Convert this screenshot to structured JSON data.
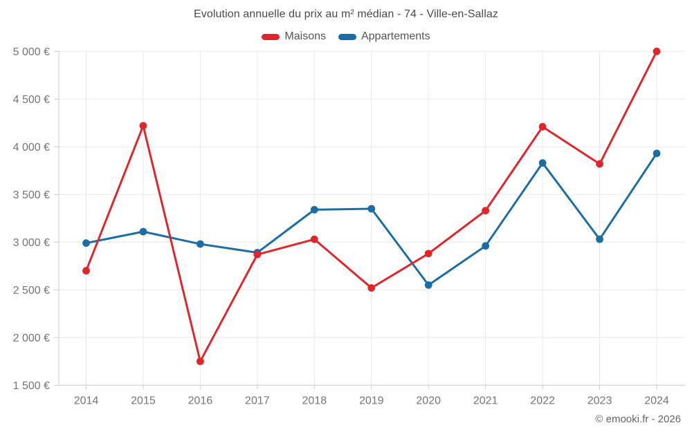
{
  "title": "Evolution annuelle du prix au m² médian - 74 - Ville-en-Sallaz",
  "footer": {
    "copyright": "© emooki.fr - 2026"
  },
  "colors": {
    "maisons": "#e0252b",
    "appartements": "#1a6da6",
    "grid": "#e9e9e9",
    "axis": "#cccccc",
    "tick_text": "#757575"
  },
  "chart_data": {
    "type": "line",
    "title": "Evolution annuelle du prix au m² médian - 74 - Ville-en-Sallaz",
    "categories": [
      "2014",
      "2015",
      "2016",
      "2017",
      "2018",
      "2019",
      "2020",
      "2021",
      "2022",
      "2023",
      "2024"
    ],
    "series": [
      {
        "name": "Maisons",
        "color": "#e0252b",
        "values": [
          2700,
          4220,
          1750,
          2870,
          3030,
          2520,
          2880,
          3330,
          4210,
          3820,
          5000
        ]
      },
      {
        "name": "Appartements",
        "color": "#1a6da6",
        "values": [
          2990,
          3110,
          2980,
          2890,
          3340,
          3350,
          2550,
          2960,
          3830,
          3030,
          3930
        ]
      }
    ],
    "ylim": [
      1500,
      5000
    ],
    "ytick_step": 500,
    "ytick_labels": [
      "1 500 €",
      "2 000 €",
      "2 500 €",
      "3 000 €",
      "3 500 €",
      "4 000 €",
      "4 500 €",
      "5 000 €"
    ],
    "ylabel_unit": "€",
    "grid": true,
    "legend_position": "top"
  }
}
